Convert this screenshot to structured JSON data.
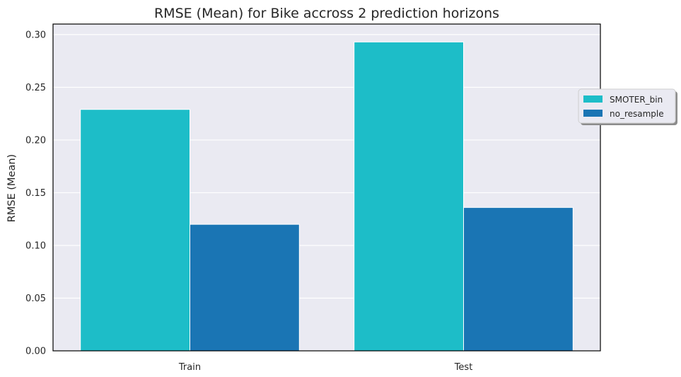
{
  "chart_data": {
    "type": "bar",
    "title": "RMSE (Mean) for Bike accross 2 prediction horizons",
    "xlabel": "",
    "ylabel": "RMSE (Mean)",
    "categories": [
      "Train",
      "Test"
    ],
    "series": [
      {
        "name": "SMOTER_bin",
        "color": "#1dbdc8",
        "values": [
          0.229,
          0.293
        ]
      },
      {
        "name": "no_resample",
        "color": "#1a75b4",
        "values": [
          0.12,
          0.136
        ]
      }
    ],
    "ylim": [
      0,
      0.31
    ],
    "yticks": [
      "0.00",
      "0.05",
      "0.10",
      "0.15",
      "0.20",
      "0.25",
      "0.30"
    ],
    "grid": true,
    "legend_position": "right",
    "background_color": "#eaeaf2"
  }
}
